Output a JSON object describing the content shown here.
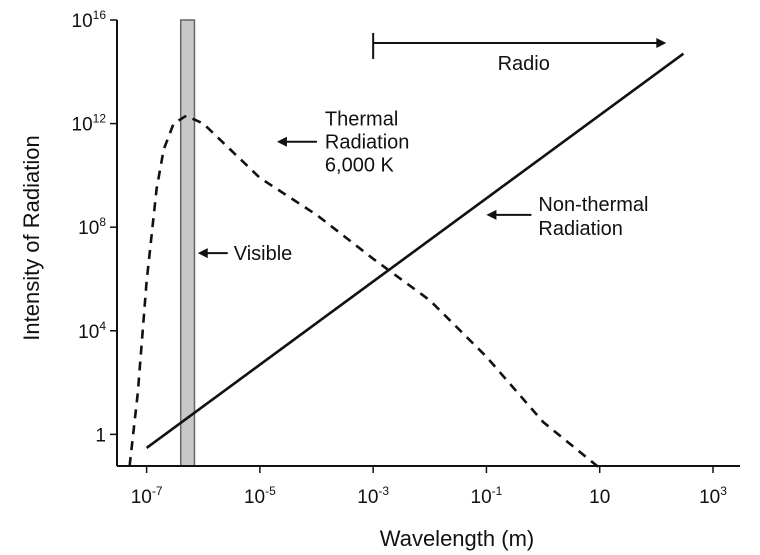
{
  "chart_data": {
    "type": "line",
    "xlabel": "Wavelength (m)",
    "ylabel": "Intensity of Radiation",
    "x_scale": "log",
    "y_scale": "log",
    "xlim": [
      3e-08,
      3000.0
    ],
    "ylim": [
      0.06,
      1e+16
    ],
    "x_ticks": [
      {
        "value": 1e-07,
        "base": "10",
        "exp": "-7"
      },
      {
        "value": 1e-05,
        "base": "10",
        "exp": "-5"
      },
      {
        "value": 0.001,
        "base": "10",
        "exp": "-3"
      },
      {
        "value": 0.1,
        "base": "10",
        "exp": "-1"
      },
      {
        "value": 10,
        "base": "10",
        "exp": ""
      },
      {
        "value": 1000.0,
        "base": "10",
        "exp": "3"
      }
    ],
    "y_ticks": [
      {
        "value": 1,
        "base": "1",
        "exp": ""
      },
      {
        "value": 10000.0,
        "base": "10",
        "exp": "4"
      },
      {
        "value": 100000000.0,
        "base": "10",
        "exp": "8"
      },
      {
        "value": 1000000000000.0,
        "base": "10",
        "exp": "12"
      },
      {
        "value": 1e+16,
        "base": "10",
        "exp": "16"
      }
    ],
    "series": [
      {
        "name": "Thermal Radiation 6,000 K",
        "style": "dashed",
        "x": [
          5e-08,
          7e-08,
          1e-07,
          1.5e-07,
          2e-07,
          3e-07,
          5e-07,
          1e-06,
          3e-06,
          1e-05,
          0.0001,
          0.001,
          0.01,
          0.1,
          1,
          10
        ],
        "y": [
          0.06,
          40,
          800000.0,
          3000000000.0,
          100000000000.0,
          1000000000000.0,
          2000000000000.0,
          1000000000000.0,
          100000000000.0,
          8000000000.0,
          300000000.0,
          6000000.0,
          150000.0,
          1000.0,
          3,
          0.05
        ]
      },
      {
        "name": "Non-thermal Radiation",
        "style": "solid",
        "x": [
          1e-07,
          300
        ],
        "y": [
          0.3,
          500000000000000.0
        ]
      }
    ],
    "bands": [
      {
        "name": "Visible",
        "x": [
          4e-07,
          7e-07
        ],
        "color": "#c8c8c8"
      }
    ],
    "annotations": [
      {
        "id": "radio",
        "text": "Radio",
        "arrow_from_x": 0.001,
        "arrow_to_x": 150,
        "y": 1300000000000000.0
      },
      {
        "id": "thermal",
        "lines": [
          "Thermal",
          "Radiation",
          "6,000 K"
        ],
        "arrow_to_x": 2e-05,
        "y": 200000000000.0
      },
      {
        "id": "nonthermal",
        "lines": [
          "Non-thermal",
          "Radiation"
        ],
        "arrow_to_x": 0.1,
        "y": 300000000.0
      },
      {
        "id": "visible",
        "text": "Visible",
        "arrow_to_x": 8e-07,
        "y": 10000000.0
      }
    ],
    "line_color": "#111111",
    "grid": false,
    "legend": false
  }
}
